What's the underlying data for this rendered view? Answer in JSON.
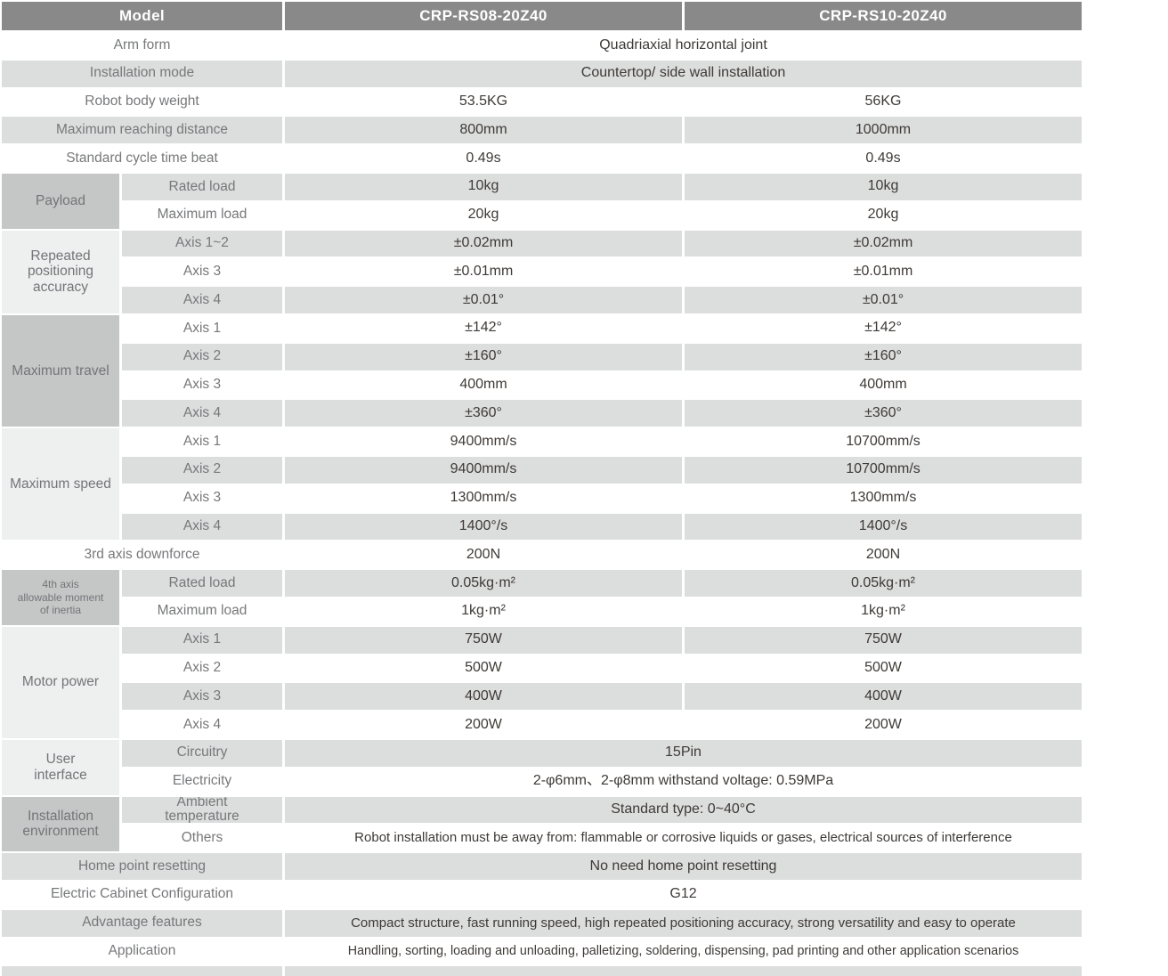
{
  "table": {
    "header": {
      "model_label": "Model",
      "columns": [
        "CRP-RS08-20Z40",
        "CRP-RS10-20Z40"
      ]
    },
    "groups": [
      {
        "label": "Payload",
        "start": 5,
        "end": 6,
        "shade": "dark"
      },
      {
        "label": "Repeated\npositioning\naccuracy",
        "start": 7,
        "end": 9,
        "shade": "light"
      },
      {
        "label": "Maximum travel",
        "start": 10,
        "end": 13,
        "shade": "dark"
      },
      {
        "label": "Maximum speed",
        "start": 14,
        "end": 17,
        "shade": "light"
      },
      {
        "label": "4th axis\nallowable moment\nof inertia",
        "start": 19,
        "end": 20,
        "shade": "dark",
        "small": true
      },
      {
        "label": "Motor power",
        "start": 21,
        "end": 24,
        "shade": "light"
      },
      {
        "label": "User\ninterface",
        "start": 25,
        "end": 26,
        "shade": "light"
      },
      {
        "label": "Installation\nenvironment",
        "start": 27,
        "end": 28,
        "shade": "dark"
      }
    ],
    "rows": [
      {
        "label": "Arm form",
        "cells": [
          {
            "span": 2,
            "text": "Quadriaxial horizontal joint"
          }
        ]
      },
      {
        "label": "Installation mode",
        "cells": [
          {
            "span": 2,
            "text": "Countertop/ side wall installation"
          }
        ]
      },
      {
        "label": "Robot body weight",
        "cells": [
          {
            "text": "53.5KG"
          },
          {
            "text": "56KG"
          }
        ]
      },
      {
        "label": "Maximum reaching distance",
        "cells": [
          {
            "text": "800mm"
          },
          {
            "text": "1000mm"
          }
        ]
      },
      {
        "label": "Standard cycle time beat",
        "cells": [
          {
            "text": "0.49s"
          },
          {
            "text": "0.49s"
          }
        ]
      },
      {
        "sub": "Rated load",
        "cells": [
          {
            "text": "10kg"
          },
          {
            "text": "10kg"
          }
        ]
      },
      {
        "sub": "Maximum load",
        "cells": [
          {
            "text": "20kg"
          },
          {
            "text": "20kg"
          }
        ]
      },
      {
        "sub": "Axis 1~2",
        "cells": [
          {
            "text": "±0.02mm"
          },
          {
            "text": "±0.02mm"
          }
        ]
      },
      {
        "sub": "Axis 3",
        "cells": [
          {
            "text": "±0.01mm"
          },
          {
            "text": "±0.01mm"
          }
        ]
      },
      {
        "sub": "Axis 4",
        "cells": [
          {
            "text": "±0.01°"
          },
          {
            "text": "±0.01°"
          }
        ]
      },
      {
        "sub": "Axis 1",
        "cells": [
          {
            "text": "±142°"
          },
          {
            "text": "±142°"
          }
        ]
      },
      {
        "sub": "Axis 2",
        "cells": [
          {
            "text": "±160°"
          },
          {
            "text": "±160°"
          }
        ]
      },
      {
        "sub": "Axis 3",
        "cells": [
          {
            "text": "400mm"
          },
          {
            "text": "400mm"
          }
        ]
      },
      {
        "sub": "Axis 4",
        "cells": [
          {
            "text": "±360°"
          },
          {
            "text": "±360°"
          }
        ]
      },
      {
        "sub": "Axis 1",
        "cells": [
          {
            "text": "9400mm/s"
          },
          {
            "text": "10700mm/s"
          }
        ]
      },
      {
        "sub": "Axis 2",
        "cells": [
          {
            "text": "9400mm/s"
          },
          {
            "text": "10700mm/s"
          }
        ]
      },
      {
        "sub": "Axis 3",
        "cells": [
          {
            "text": "1300mm/s"
          },
          {
            "text": "1300mm/s"
          }
        ]
      },
      {
        "sub": "Axis 4",
        "cells": [
          {
            "text": "1400°/s"
          },
          {
            "text": "1400°/s"
          }
        ]
      },
      {
        "label": "3rd axis downforce",
        "cells": [
          {
            "text": "200N"
          },
          {
            "text": "200N"
          }
        ]
      },
      {
        "sub": "Rated load",
        "cells": [
          {
            "text": "0.05kg·m²"
          },
          {
            "text": "0.05kg·m²"
          }
        ]
      },
      {
        "sub": "Maximum load",
        "cells": [
          {
            "text": "1kg·m²"
          },
          {
            "text": "1kg·m²"
          }
        ]
      },
      {
        "sub": "Axis 1",
        "cells": [
          {
            "text": "750W"
          },
          {
            "text": "750W"
          }
        ]
      },
      {
        "sub": "Axis 2",
        "cells": [
          {
            "text": "500W"
          },
          {
            "text": "500W"
          }
        ]
      },
      {
        "sub": "Axis 3",
        "cells": [
          {
            "text": "400W"
          },
          {
            "text": "400W"
          }
        ]
      },
      {
        "sub": "Axis 4",
        "cells": [
          {
            "text": "200W"
          },
          {
            "text": "200W"
          }
        ]
      },
      {
        "sub": "Circuitry",
        "cells": [
          {
            "span": 2,
            "text": "15Pin"
          }
        ]
      },
      {
        "sub": "Electricity",
        "cells": [
          {
            "span": 2,
            "text": "2-φ6mm、2-φ8mm withstand voltage: 0.59MPa"
          }
        ]
      },
      {
        "sub": "Ambient\ntemperature",
        "cells": [
          {
            "span": 2,
            "text": "Standard type: 0~40°C"
          }
        ]
      },
      {
        "sub": "Others",
        "cells": [
          {
            "span": 2,
            "small": true,
            "text": "Robot installation must be away from: flammable or corrosive liquids or gases, electrical sources of interference"
          }
        ]
      },
      {
        "label": "Home point resetting",
        "cells": [
          {
            "span": 2,
            "text": "No need home point resetting"
          }
        ]
      },
      {
        "label": "Electric Cabinet Configuration",
        "cells": [
          {
            "span": 2,
            "text": "G12"
          }
        ]
      },
      {
        "label": "Advantage features",
        "cells": [
          {
            "span": 2,
            "small": true,
            "text": "Compact structure, fast running speed, high repeated positioning accuracy, strong versatility and easy to operate"
          }
        ]
      },
      {
        "label": "Application",
        "cells": [
          {
            "span": 2,
            "smaller": true,
            "text": "Handling, sorting, loading and unloading, palletizing, soldering, dispensing, pad printing and other application scenarios"
          }
        ]
      },
      {
        "label": "",
        "cells": [
          {
            "span": 2,
            "text": ""
          }
        ]
      }
    ],
    "colors": {
      "header_bg": "#898989",
      "header_text": "#ffffff",
      "stripe_bg": "#dcdddd",
      "group_dark_bg": "#c5c6c6",
      "group_light_bg": "#eeefef",
      "label_text": "#77787a",
      "value_text": "#3e3a37"
    }
  }
}
